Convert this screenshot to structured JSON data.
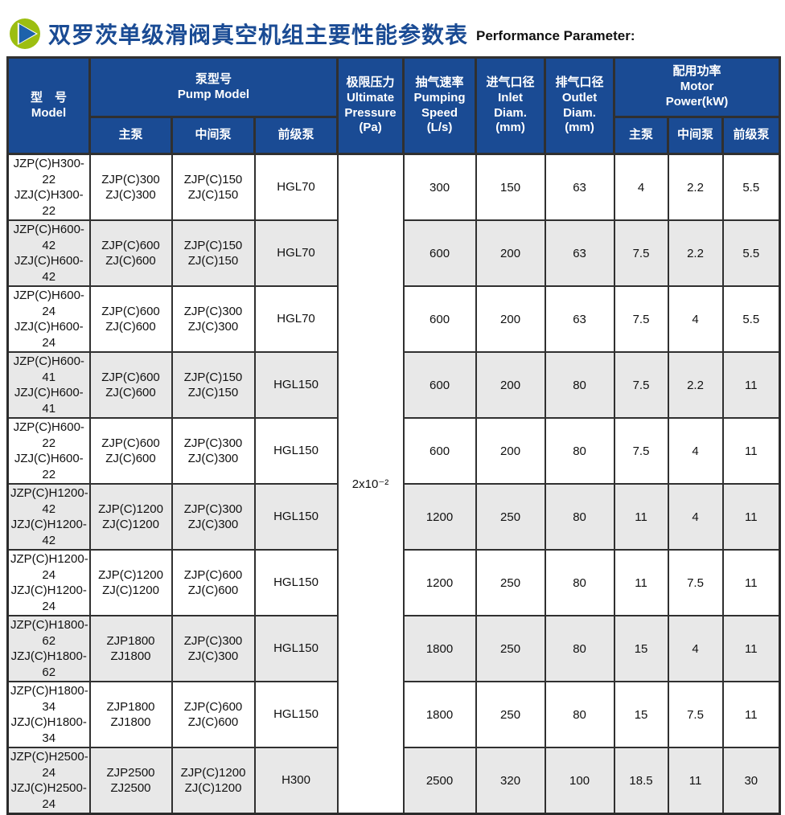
{
  "title": {
    "zh": "双罗茨单级滑阀真空机组主要性能参数表",
    "en": "Performance Parameter:",
    "icon": "play-circle-icon"
  },
  "colors": {
    "header_blue": "#1A4B94",
    "title_blue": "#1A4B94",
    "icon_green": "#9CBE11",
    "icon_triangle_blue": "#1E62AB",
    "stripe_gray": "#E8E8E8",
    "grid_dark": "#303030",
    "header_text": "#FFFFFF",
    "body_text": "#111111"
  },
  "table": {
    "headers": {
      "model": "型　号\nModel",
      "pump_model": "泵型号\nPump Model",
      "pump_model_sub": [
        "主泵",
        "中间泵",
        "前级泵"
      ],
      "ultimate_pressure": "极限压力\nUltimate\nPressure\n(Pa)",
      "pumping_speed": "抽气速率\nPumping\nSpeed\n(L/s)",
      "inlet": "进气口径\nInlet\nDiam.\n(mm)",
      "outlet": "排气口径\nOutlet\nDiam.\n(mm)",
      "motor_power": "配用功率\nMotor\nPower(kW)",
      "motor_power_sub": [
        "主泵",
        "中间泵",
        "前级泵"
      ]
    },
    "ultimate_pressure_value": "2x10⁻²",
    "rows": [
      {
        "model": "JZP(C)H300-22\nJZJ(C)H300-22",
        "main": "ZJP(C)300\nZJ(C)300",
        "middle": "ZJP(C)150\nZJ(C)150",
        "backing": "HGL70",
        "speed": "300",
        "inlet": "150",
        "outlet": "63",
        "power_main": "4",
        "power_middle": "2.2",
        "power_backing": "5.5"
      },
      {
        "model": "JZP(C)H600-42\nJZJ(C)H600-42",
        "main": "ZJP(C)600\nZJ(C)600",
        "middle": "ZJP(C)150\nZJ(C)150",
        "backing": "HGL70",
        "speed": "600",
        "inlet": "200",
        "outlet": "63",
        "power_main": "7.5",
        "power_middle": "2.2",
        "power_backing": "5.5"
      },
      {
        "model": "JZP(C)H600-24\nJZJ(C)H600-24",
        "main": "ZJP(C)600\nZJ(C)600",
        "middle": "ZJP(C)300\nZJ(C)300",
        "backing": "HGL70",
        "speed": "600",
        "inlet": "200",
        "outlet": "63",
        "power_main": "7.5",
        "power_middle": "4",
        "power_backing": "5.5"
      },
      {
        "model": "JZP(C)H600-41\nJZJ(C)H600-41",
        "main": "ZJP(C)600\nZJ(C)600",
        "middle": "ZJP(C)150\nZJ(C)150",
        "backing": "HGL150",
        "speed": "600",
        "inlet": "200",
        "outlet": "80",
        "power_main": "7.5",
        "power_middle": "2.2",
        "power_backing": "11"
      },
      {
        "model": "JZP(C)H600-22\nJZJ(C)H600-22",
        "main": "ZJP(C)600\nZJ(C)600",
        "middle": "ZJP(C)300\nZJ(C)300",
        "backing": "HGL150",
        "speed": "600",
        "inlet": "200",
        "outlet": "80",
        "power_main": "7.5",
        "power_middle": "4",
        "power_backing": "11"
      },
      {
        "model": "JZP(C)H1200-42\nJZJ(C)H1200-42",
        "main": "ZJP(C)1200\nZJ(C)1200",
        "middle": "ZJP(C)300\nZJ(C)300",
        "backing": "HGL150",
        "speed": "1200",
        "inlet": "250",
        "outlet": "80",
        "power_main": "11",
        "power_middle": "4",
        "power_backing": "11"
      },
      {
        "model": "JZP(C)H1200-24\nJZJ(C)H1200-24",
        "main": "ZJP(C)1200\nZJ(C)1200",
        "middle": "ZJP(C)600\nZJ(C)600",
        "backing": "HGL150",
        "speed": "1200",
        "inlet": "250",
        "outlet": "80",
        "power_main": "11",
        "power_middle": "7.5",
        "power_backing": "11"
      },
      {
        "model": "JZP(C)H1800-62\nJZJ(C)H1800-62",
        "main": "ZJP1800\nZJ1800",
        "middle": "ZJP(C)300\nZJ(C)300",
        "backing": "HGL150",
        "speed": "1800",
        "inlet": "250",
        "outlet": "80",
        "power_main": "15",
        "power_middle": "4",
        "power_backing": "11"
      },
      {
        "model": "JZP(C)H1800-34\nJZJ(C)H1800-34",
        "main": "ZJP1800\nZJ1800",
        "middle": "ZJP(C)600\nZJ(C)600",
        "backing": "HGL150",
        "speed": "1800",
        "inlet": "250",
        "outlet": "80",
        "power_main": "15",
        "power_middle": "7.5",
        "power_backing": "11"
      },
      {
        "model": "JZP(C)H2500-24\nJZJ(C)H2500-24",
        "main": "ZJP2500\nZJ2500",
        "middle": "ZJP(C)1200\nZJ(C)1200",
        "backing": "H300",
        "speed": "2500",
        "inlet": "320",
        "outlet": "100",
        "power_main": "18.5",
        "power_middle": "11",
        "power_backing": "30"
      }
    ]
  }
}
